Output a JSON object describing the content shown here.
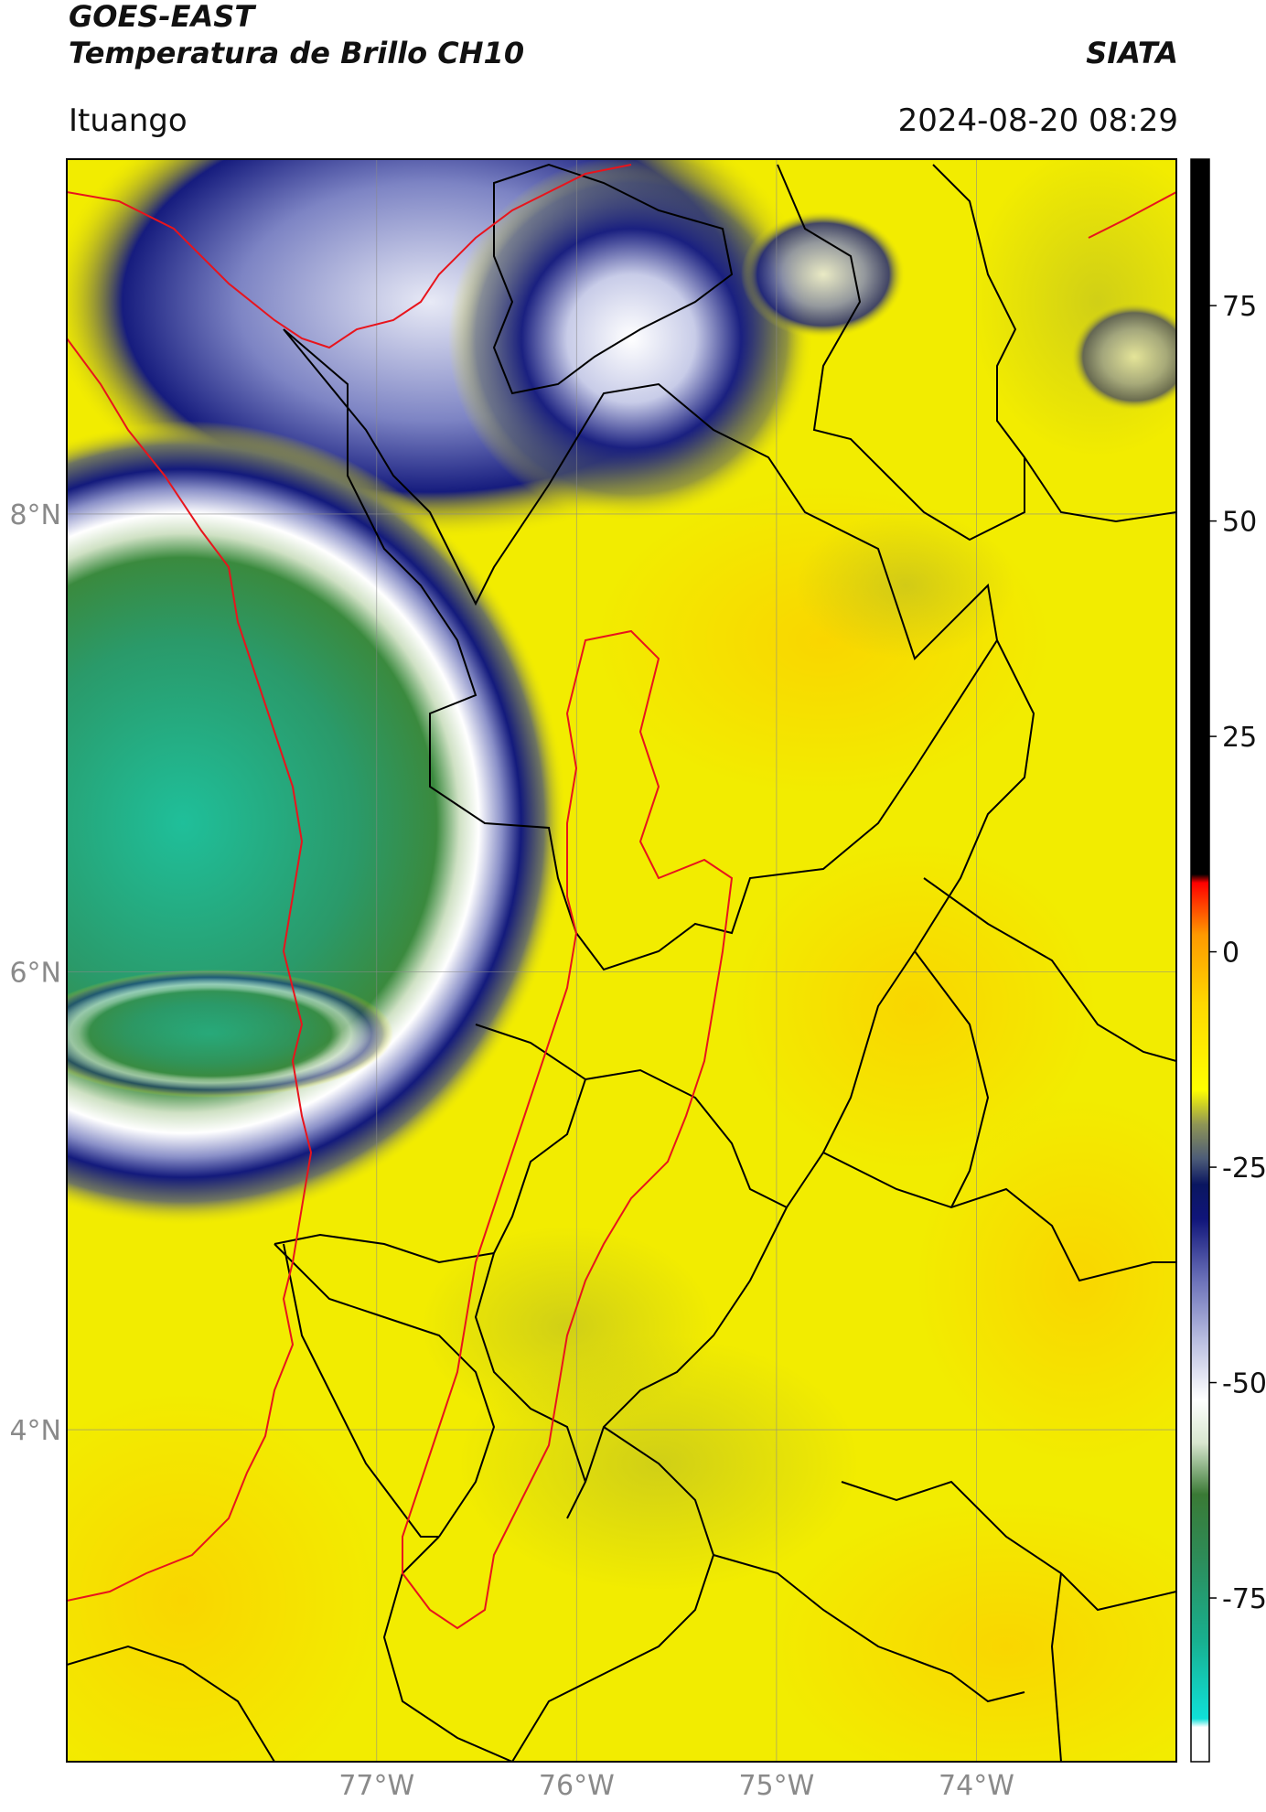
{
  "header": {
    "satellite": "GOES-EAST",
    "product": "Temperatura de Brillo CH10",
    "organization": "SIATA",
    "location": "Ituango",
    "datetime": "2024-08-20 08:29"
  },
  "map": {
    "lat_labels": [
      "8°N",
      "6°N",
      "4°N"
    ],
    "lon_labels": [
      "77°W",
      "76°W",
      "75°W",
      "74°W"
    ],
    "grid_lat": [
      8,
      6,
      4
    ],
    "grid_lon": [
      -77,
      -76,
      -75,
      -74
    ],
    "extent": {
      "lon_min": -78.55,
      "lon_max": -73.0,
      "lat_min": 2.55,
      "lat_max": 9.55
    },
    "features": {
      "cold_cloud_core_center": {
        "lon": -78.0,
        "lat": 6.6
      },
      "secondary_cloud_center": {
        "lon": -75.75,
        "lat": 8.7
      },
      "highlight_basin": "Ituango"
    }
  },
  "colorbar": {
    "tick_labels": [
      "75",
      "50",
      "25",
      "0",
      "-25",
      "-50",
      "-75"
    ],
    "tick_values": [
      75,
      50,
      25,
      0,
      -25,
      -50,
      -75
    ],
    "vmin": -94,
    "vmax": 92,
    "stops": [
      {
        "v": -94,
        "c": "#ffffff"
      },
      {
        "v": -90,
        "c": "#ffffff"
      },
      {
        "v": -89,
        "c": "#10e0d8"
      },
      {
        "v": -80,
        "c": "#18b090"
      },
      {
        "v": -70,
        "c": "#2e8b57"
      },
      {
        "v": -63,
        "c": "#3a7a35"
      },
      {
        "v": -57,
        "c": "#d8e6cf"
      },
      {
        "v": -52,
        "c": "#ffffff"
      },
      {
        "v": -45,
        "c": "#b8bde0"
      },
      {
        "v": -38,
        "c": "#6a70b8"
      },
      {
        "v": -31,
        "c": "#10157a"
      },
      {
        "v": -27,
        "c": "#0a1660"
      },
      {
        "v": -24,
        "c": "#4d5c78"
      },
      {
        "v": -20,
        "c": "#8f9555"
      },
      {
        "v": -16,
        "c": "#ffff00"
      },
      {
        "v": -6,
        "c": "#ffd800"
      },
      {
        "v": 2,
        "c": "#ff9900"
      },
      {
        "v": 8,
        "c": "#ff0000"
      },
      {
        "v": 9,
        "c": "#000000"
      },
      {
        "v": 92,
        "c": "#000000"
      }
    ]
  }
}
